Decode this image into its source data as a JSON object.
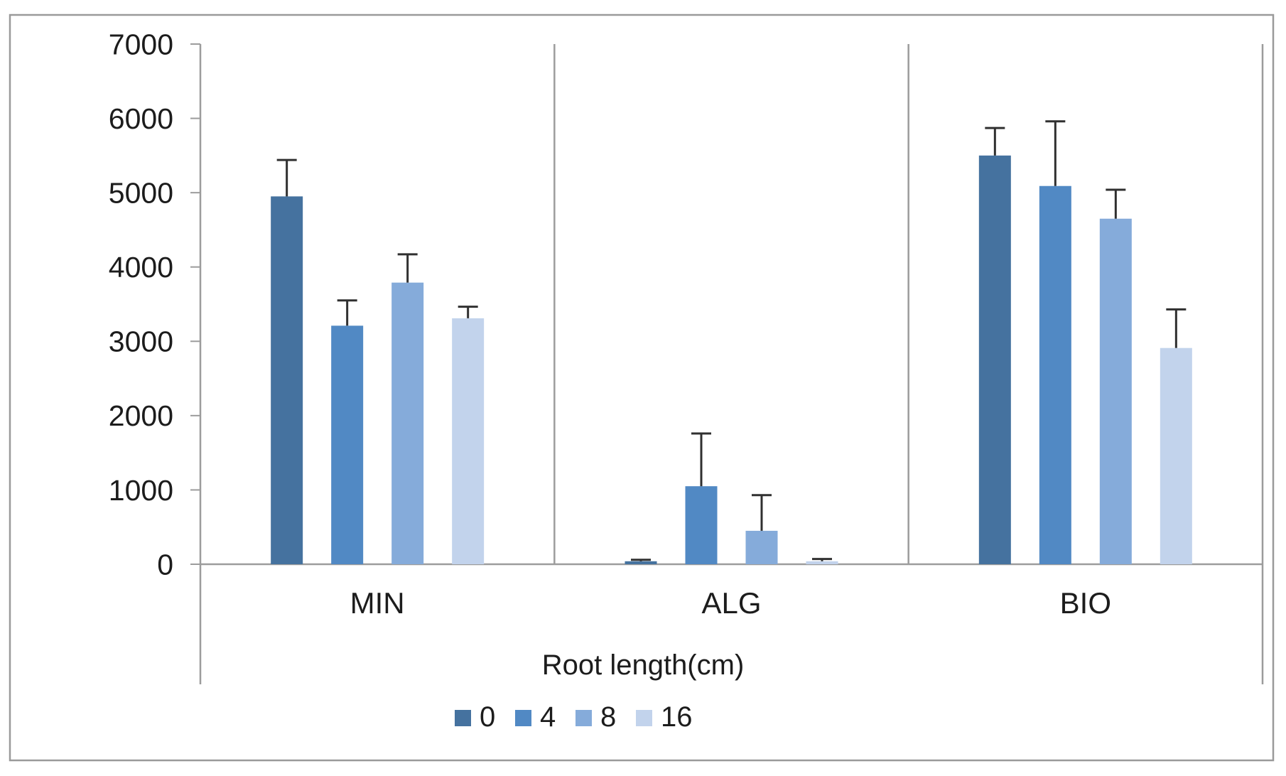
{
  "chart_data": {
    "type": "bar",
    "title": "",
    "categories": [
      "MIN",
      "ALG",
      "BIO"
    ],
    "series": [
      {
        "name": "0",
        "color": "#45729f",
        "values": [
          4950,
          40,
          5500
        ],
        "errors": [
          490,
          20,
          370
        ]
      },
      {
        "name": "4",
        "color": "#5189c4",
        "values": [
          3210,
          1050,
          5090
        ],
        "errors": [
          340,
          710,
          870
        ]
      },
      {
        "name": "8",
        "color": "#85abda",
        "values": [
          3790,
          450,
          4650
        ],
        "errors": [
          380,
          480,
          390
        ]
      },
      {
        "name": "16",
        "color": "#c2d3ec",
        "values": [
          3310,
          40,
          2910
        ],
        "errors": [
          155,
          30,
          520
        ]
      }
    ],
    "xlabel": "Root length(cm)",
    "ylabel": "",
    "ylim": [
      0,
      7000
    ],
    "yticks": [
      0,
      1000,
      2000,
      3000,
      4000,
      5000,
      6000,
      7000
    ],
    "error_bars": true,
    "grid": false,
    "legend_position": "bottom",
    "legend_labels": [
      "0",
      "4",
      "8",
      "16"
    ]
  },
  "styles": {
    "frame_color": "#9a9a9a",
    "axis_line_color": "#9c9c9c",
    "error_bar_color": "#303030",
    "text_color": "#1c1c1c",
    "background": "#ffffff"
  }
}
